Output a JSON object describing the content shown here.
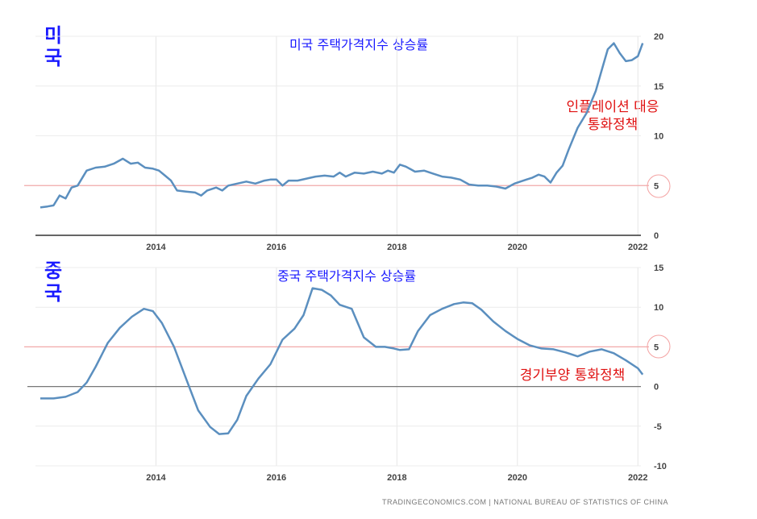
{
  "chart_data": [
    {
      "type": "line",
      "title": "미국 주택가격지수 상승률",
      "country_label": "미국",
      "annotation": [
        "인플레이션 대응",
        "통화정책"
      ],
      "x_ticks": [
        "2014",
        "2016",
        "2018",
        "2020",
        "2022"
      ],
      "y_ticks": [
        "0",
        "5",
        "10",
        "15",
        "20"
      ],
      "ylim": [
        0,
        20
      ],
      "xlim": [
        2012.0,
        2022.05
      ],
      "reference_line": 5,
      "highlighted_tick": "5",
      "colors": {
        "line": "#5b8fbf",
        "reference": "#f1a9a9",
        "title": "#1a1aff",
        "annotation": "#e01010"
      },
      "series": [
        {
          "x": [
            2012.08,
            2012.2,
            2012.3,
            2012.4,
            2012.5,
            2012.6,
            2012.7,
            2012.85,
            2013.0,
            2013.15,
            2013.3,
            2013.45,
            2013.58,
            2013.7,
            2013.82,
            2013.95,
            2014.05,
            2014.15,
            2014.25,
            2014.35,
            2014.5,
            2014.65,
            2014.75,
            2014.85,
            2015.0,
            2015.1,
            2015.2,
            2015.35,
            2015.5,
            2015.65,
            2015.8,
            2015.9,
            2016.0,
            2016.1,
            2016.2,
            2016.35,
            2016.5,
            2016.65,
            2016.8,
            2016.95,
            2017.05,
            2017.15,
            2017.3,
            2017.45,
            2017.6,
            2017.75,
            2017.85,
            2017.95,
            2018.05,
            2018.15,
            2018.3,
            2018.45,
            2018.6,
            2018.75,
            2018.9,
            2019.05,
            2019.2,
            2019.35,
            2019.5,
            2019.65,
            2019.8,
            2019.95,
            2020.05,
            2020.15,
            2020.25,
            2020.35,
            2020.45,
            2020.55,
            2020.65,
            2020.75,
            2020.85,
            2021.0,
            2021.15,
            2021.3,
            2021.4,
            2021.5,
            2021.6,
            2021.7,
            2021.8,
            2021.9,
            2022.0,
            2022.08
          ],
          "values": [
            2.8,
            2.9,
            3.0,
            4.0,
            3.7,
            4.8,
            5.0,
            6.5,
            6.8,
            6.9,
            7.2,
            7.7,
            7.2,
            7.3,
            6.8,
            6.7,
            6.5,
            6.0,
            5.5,
            4.5,
            4.4,
            4.3,
            4.0,
            4.5,
            4.8,
            4.5,
            5.0,
            5.2,
            5.4,
            5.2,
            5.5,
            5.6,
            5.6,
            5.0,
            5.5,
            5.5,
            5.7,
            5.9,
            6.0,
            5.9,
            6.3,
            5.9,
            6.3,
            6.2,
            6.4,
            6.2,
            6.5,
            6.3,
            7.1,
            6.9,
            6.4,
            6.5,
            6.2,
            5.9,
            5.8,
            5.6,
            5.1,
            5.0,
            5.0,
            4.9,
            4.7,
            5.2,
            5.4,
            5.6,
            5.8,
            6.1,
            5.9,
            5.3,
            6.3,
            7.0,
            8.6,
            10.8,
            12.3,
            14.5,
            16.6,
            18.7,
            19.3,
            18.3,
            17.5,
            17.6,
            18.0,
            19.3
          ]
        }
      ]
    },
    {
      "type": "line",
      "title": "중국 주택가격지수 상승률",
      "country_label": "중국",
      "annotation": [
        "경기부양 통화정책"
      ],
      "x_ticks": [
        "2014",
        "2016",
        "2018",
        "2020",
        "2022"
      ],
      "y_ticks": [
        "15",
        "10",
        "5",
        "0",
        "-5",
        "-10"
      ],
      "ylim": [
        -10,
        15
      ],
      "xlim": [
        2012.0,
        2022.05
      ],
      "reference_line": 5,
      "zero_line": 0,
      "highlighted_tick": "5",
      "source": "TRADINGECONOMICS.COM | NATIONAL BUREAU OF STATISTICS OF CHINA",
      "colors": {
        "line": "#5b8fbf",
        "reference": "#f1a9a9",
        "zero": "#777777",
        "title": "#1a1aff",
        "annotation": "#e01010"
      },
      "series": [
        {
          "x": [
            2012.08,
            2012.3,
            2012.5,
            2012.7,
            2012.85,
            2013.0,
            2013.2,
            2013.4,
            2013.6,
            2013.8,
            2013.95,
            2014.1,
            2014.3,
            2014.5,
            2014.7,
            2014.9,
            2015.05,
            2015.2,
            2015.35,
            2015.5,
            2015.7,
            2015.9,
            2016.1,
            2016.3,
            2016.45,
            2016.6,
            2016.75,
            2016.9,
            2017.05,
            2017.25,
            2017.45,
            2017.65,
            2017.8,
            2017.95,
            2018.05,
            2018.2,
            2018.35,
            2018.55,
            2018.75,
            2018.95,
            2019.1,
            2019.25,
            2019.4,
            2019.6,
            2019.8,
            2020.0,
            2020.2,
            2020.4,
            2020.6,
            2020.8,
            2021.0,
            2021.2,
            2021.4,
            2021.6,
            2021.8,
            2022.0,
            2022.08
          ],
          "values": [
            -1.5,
            -1.5,
            -1.3,
            -0.7,
            0.5,
            2.5,
            5.5,
            7.4,
            8.8,
            9.8,
            9.5,
            8.0,
            5.0,
            1.0,
            -3.0,
            -5.1,
            -6.0,
            -5.9,
            -4.2,
            -1.2,
            1.0,
            2.8,
            5.9,
            7.3,
            9.0,
            12.4,
            12.2,
            11.5,
            10.3,
            9.8,
            6.2,
            5.0,
            5.0,
            4.8,
            4.6,
            4.7,
            7.0,
            9.0,
            9.8,
            10.4,
            10.6,
            10.5,
            9.7,
            8.2,
            7.0,
            6.0,
            5.2,
            4.8,
            4.7,
            4.3,
            3.8,
            4.4,
            4.7,
            4.2,
            3.3,
            2.3,
            1.5
          ]
        }
      ]
    }
  ]
}
